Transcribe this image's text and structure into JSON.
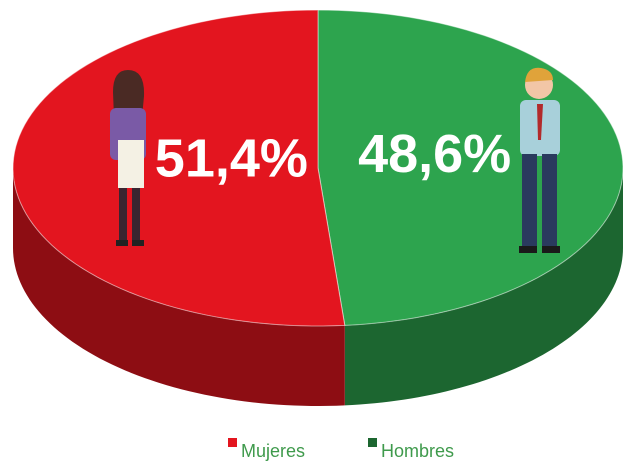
{
  "chart_data": {
    "type": "pie",
    "categories": [
      "Mujeres",
      "Hombres"
    ],
    "values": [
      51.4,
      48.6
    ],
    "value_labels": [
      "51,4%",
      "48,6%"
    ],
    "colors": [
      "#e3151f",
      "#2da44e"
    ],
    "legend": "bottom"
  }
}
